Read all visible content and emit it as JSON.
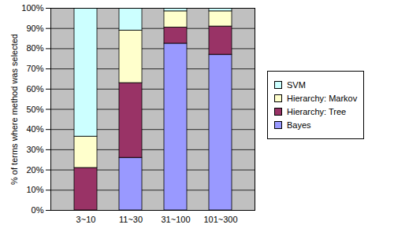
{
  "chart_data": {
    "type": "bar",
    "stacked": true,
    "y_label": "% of terms where method was selected",
    "categories": [
      "3~10",
      "11~30",
      "31~100",
      "101~300"
    ],
    "series": [
      {
        "name": "Bayes",
        "color": "#9999ff",
        "values": [
          0,
          26,
          82.5,
          77
        ]
      },
      {
        "name": "Hierarchy: Tree",
        "color": "#993366",
        "values": [
          21,
          37,
          8,
          14
        ]
      },
      {
        "name": "Hierarchy: Markov",
        "color": "#ffffcc",
        "values": [
          15.5,
          26,
          8,
          7.5
        ]
      },
      {
        "name": "SVM",
        "color": "#ccffff",
        "values": [
          63.5,
          11,
          1.5,
          1.5
        ]
      }
    ],
    "ylim": [
      0,
      100
    ],
    "yticks": [
      {
        "value": 0,
        "label": "0%"
      },
      {
        "value": 10,
        "label": "10%"
      },
      {
        "value": 20,
        "label": "20%"
      },
      {
        "value": 30,
        "label": "30%"
      },
      {
        "value": 40,
        "label": "40%"
      },
      {
        "value": 50,
        "label": "50%"
      },
      {
        "value": 60,
        "label": "60%"
      },
      {
        "value": 70,
        "label": "70%"
      },
      {
        "value": 80,
        "label": "80%"
      },
      {
        "value": 90,
        "label": "90%"
      },
      {
        "value": 100,
        "label": "100%"
      }
    ],
    "grid": true,
    "legend": "right"
  }
}
